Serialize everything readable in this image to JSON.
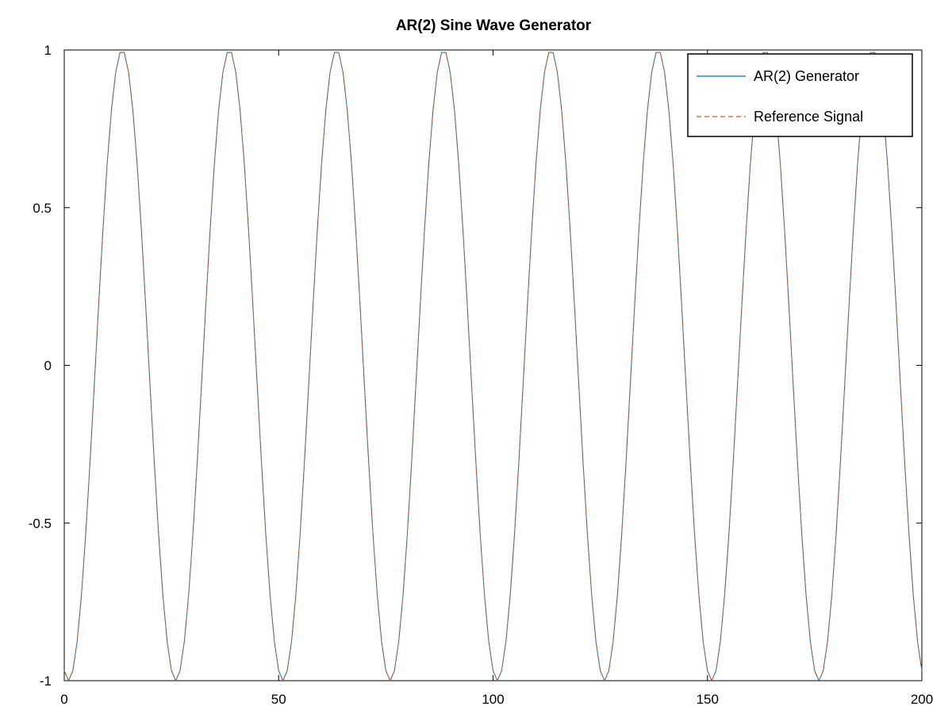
{
  "chart_data": {
    "type": "line",
    "title": "AR(2) Sine Wave Generator",
    "xlabel": "",
    "ylabel": "",
    "xlim": [
      0,
      200
    ],
    "ylim": [
      -1,
      1
    ],
    "x_ticks": [
      0,
      50,
      100,
      150,
      200
    ],
    "y_ticks": [
      -1,
      -0.5,
      0,
      0.5,
      1
    ],
    "x_tick_labels": [
      "0",
      "50",
      "100",
      "150",
      "200"
    ],
    "y_tick_labels": [
      "-1",
      "-0.5",
      "0",
      "0.5",
      "1"
    ],
    "grid": false,
    "legend_position": "top-right",
    "x_step": 1,
    "series": [
      {
        "name": "AR(2) Generator",
        "color": "#0072bd",
        "dash": "solid",
        "frequency_cycles_per_sample": 0.04,
        "phase_offset_samples": 1,
        "x_start": 0,
        "x_end": 200,
        "amplitude": 1,
        "waveform": "-cos"
      },
      {
        "name": "Reference Signal",
        "color": "#d95319",
        "dash": "dashed",
        "frequency_cycles_per_sample": 0.04,
        "phase_offset_samples": 1,
        "x_start": 0,
        "x_end": 200,
        "amplitude": 1,
        "waveform": "-cos"
      }
    ]
  }
}
